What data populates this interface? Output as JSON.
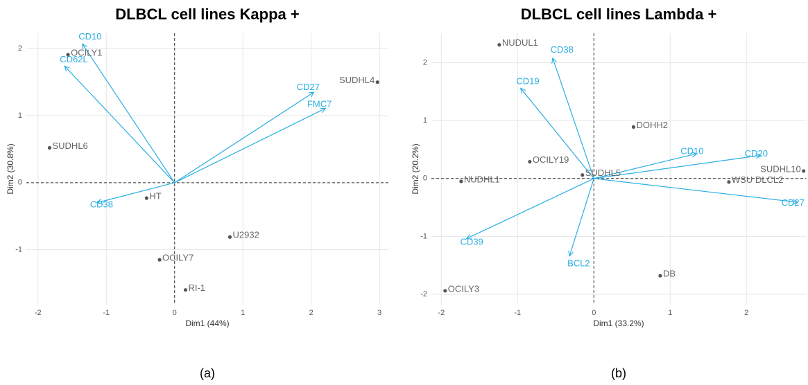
{
  "chart_data": [
    {
      "type": "biplot",
      "title": "DLBCL cell lines Kappa +",
      "caption": "(a)",
      "xlabel": "Dim1 (44%)",
      "ylabel": "Dim2 (30.8%)",
      "xlim": [
        -2.17,
        3.13
      ],
      "ylim": [
        -1.82,
        2.23
      ],
      "xticks": [
        -2,
        -1,
        0,
        1,
        2,
        3
      ],
      "yticks": [
        -1,
        0,
        1,
        2
      ],
      "grid": true,
      "point_color": "#555555",
      "arrow_color": "#29aee3",
      "points": {
        "labels": [
          "OCILY1",
          "SUDHL4",
          "SUDHL6",
          "HT",
          "U2932",
          "OCILY7",
          "RI-1"
        ],
        "x": [
          -1.56,
          2.97,
          -1.83,
          -0.41,
          0.81,
          -0.22,
          0.16
        ],
        "y": [
          1.91,
          1.5,
          0.52,
          -0.23,
          -0.81,
          -1.15,
          -1.6
        ]
      },
      "arrows": {
        "labels": [
          "CD10",
          "CD62L",
          "CD27",
          "FMC7",
          "CD38"
        ],
        "x": [
          -1.35,
          -1.61,
          2.04,
          2.21,
          -1.14
        ],
        "y": [
          2.07,
          1.74,
          1.35,
          1.11,
          -0.3
        ]
      }
    },
    {
      "type": "biplot",
      "title": "DLBCL cell lines Lambda +",
      "caption": "(b)",
      "xlabel": "Dim1 (33.2%)",
      "ylabel": "Dim2 (20.2%)",
      "xlim": [
        -2.13,
        2.78
      ],
      "ylim": [
        -2.18,
        2.51
      ],
      "xticks": [
        -2,
        -1,
        0,
        1,
        2
      ],
      "yticks": [
        -2,
        -1,
        0,
        1,
        2
      ],
      "grid": true,
      "point_color": "#555555",
      "arrow_color": "#29aee3",
      "points": {
        "labels": [
          "NUDUL1",
          "DOHH2",
          "OCILY19",
          "SUDHL5",
          "NUDHL1",
          "SUDHL10",
          "WSU DLCL2",
          "DB",
          "OCILY3"
        ],
        "x": [
          -1.24,
          0.52,
          -0.84,
          -0.15,
          -1.74,
          2.75,
          1.77,
          0.87,
          -1.95
        ],
        "y": [
          2.31,
          0.89,
          0.29,
          0.06,
          -0.05,
          0.13,
          -0.06,
          -1.68,
          -1.94
        ]
      },
      "arrows": {
        "labels": [
          "CD38",
          "CD19",
          "CD10",
          "CD20",
          "CD27",
          "CD39",
          "BCL2"
        ],
        "x": [
          -0.54,
          -0.96,
          1.35,
          2.19,
          2.67,
          -1.67,
          -0.32
        ],
        "y": [
          2.08,
          1.56,
          0.43,
          0.4,
          -0.41,
          -1.04,
          -1.34
        ]
      }
    }
  ]
}
